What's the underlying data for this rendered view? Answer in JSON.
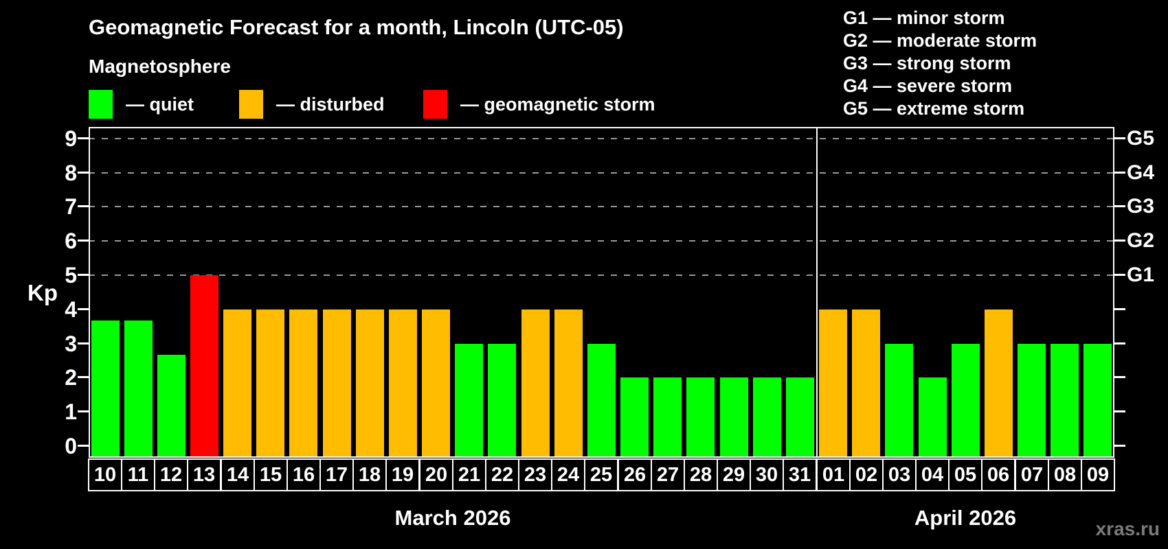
{
  "title": "Geomagnetic Forecast for a month, Lincoln (UTC-05)",
  "magnetosphere_legend": {
    "heading": "Magnetosphere",
    "items": [
      {
        "key": "quiet",
        "label": "— quiet",
        "color": "#00ff00"
      },
      {
        "key": "disturbed",
        "label": "— disturbed",
        "color": "#ffbc00"
      },
      {
        "key": "storm",
        "label": "— geomagnetic storm",
        "color": "#ff0000"
      }
    ]
  },
  "g_scale_legend": [
    "G1 — minor storm",
    "G2 — moderate storm",
    "G3 — strong storm",
    "G4 — severe storm",
    "G5 — extreme storm"
  ],
  "watermark": "xras.ru",
  "chart_data": {
    "type": "bar",
    "title": "Geomagnetic Forecast for a month, Lincoln (UTC-05)",
    "ylabel": "Kp",
    "ylim": [
      0,
      9
    ],
    "yticks": [
      0,
      1,
      2,
      3,
      4,
      5,
      6,
      7,
      8,
      9
    ],
    "grid": "dashed horizontal lines at storm levels only",
    "gridlines_at_kp": [
      5,
      6,
      7,
      8,
      9
    ],
    "right_axis": [
      {
        "label": "G1",
        "kp": 5
      },
      {
        "label": "G2",
        "kp": 6
      },
      {
        "label": "G3",
        "kp": 7
      },
      {
        "label": "G4",
        "kp": 8
      },
      {
        "label": "G5",
        "kp": 9
      }
    ],
    "status_colors": {
      "quiet": "#00ff00",
      "disturbed": "#ffbc00",
      "storm": "#ff0000"
    },
    "months": [
      {
        "label": "March 2026",
        "days": [
          {
            "day": "10",
            "kp": 3.67,
            "status": "quiet"
          },
          {
            "day": "11",
            "kp": 3.67,
            "status": "quiet"
          },
          {
            "day": "12",
            "kp": 2.67,
            "status": "quiet"
          },
          {
            "day": "13",
            "kp": 5,
            "status": "storm"
          },
          {
            "day": "14",
            "kp": 4,
            "status": "disturbed"
          },
          {
            "day": "15",
            "kp": 4,
            "status": "disturbed"
          },
          {
            "day": "16",
            "kp": 4,
            "status": "disturbed"
          },
          {
            "day": "17",
            "kp": 4,
            "status": "disturbed"
          },
          {
            "day": "18",
            "kp": 4,
            "status": "disturbed"
          },
          {
            "day": "19",
            "kp": 4,
            "status": "disturbed"
          },
          {
            "day": "20",
            "kp": 4,
            "status": "disturbed"
          },
          {
            "day": "21",
            "kp": 3,
            "status": "quiet"
          },
          {
            "day": "22",
            "kp": 3,
            "status": "quiet"
          },
          {
            "day": "23",
            "kp": 4,
            "status": "disturbed"
          },
          {
            "day": "24",
            "kp": 4,
            "status": "disturbed"
          },
          {
            "day": "25",
            "kp": 3,
            "status": "quiet"
          },
          {
            "day": "26",
            "kp": 2,
            "status": "quiet"
          },
          {
            "day": "27",
            "kp": 2,
            "status": "quiet"
          },
          {
            "day": "28",
            "kp": 2,
            "status": "quiet"
          },
          {
            "day": "29",
            "kp": 2,
            "status": "quiet"
          },
          {
            "day": "30",
            "kp": 2,
            "status": "quiet"
          },
          {
            "day": "31",
            "kp": 2,
            "status": "quiet"
          }
        ]
      },
      {
        "label": "April 2026",
        "days": [
          {
            "day": "01",
            "kp": 4,
            "status": "disturbed"
          },
          {
            "day": "02",
            "kp": 4,
            "status": "disturbed"
          },
          {
            "day": "03",
            "kp": 3,
            "status": "quiet"
          },
          {
            "day": "04",
            "kp": 2,
            "status": "quiet"
          },
          {
            "day": "05",
            "kp": 3,
            "status": "quiet"
          },
          {
            "day": "06",
            "kp": 4,
            "status": "disturbed"
          },
          {
            "day": "07",
            "kp": 3,
            "status": "quiet"
          },
          {
            "day": "08",
            "kp": 3,
            "status": "quiet"
          },
          {
            "day": "09",
            "kp": 3,
            "status": "quiet"
          }
        ]
      }
    ]
  }
}
